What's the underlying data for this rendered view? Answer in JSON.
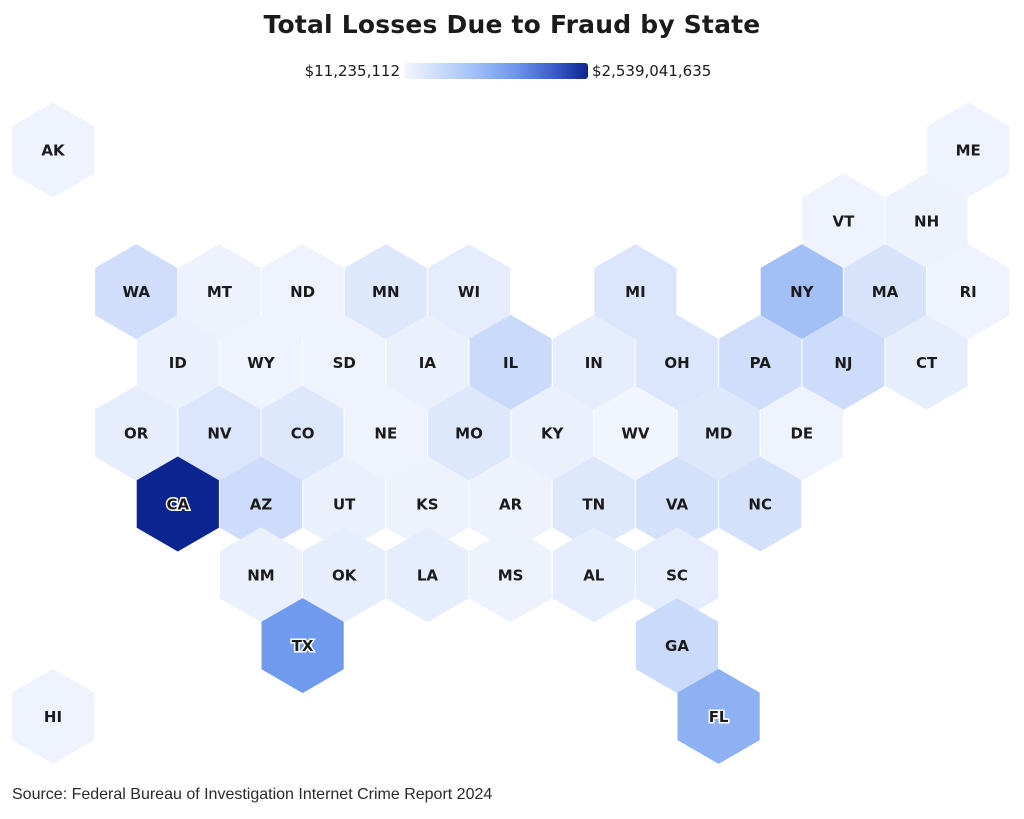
{
  "chart_data": {
    "type": "heatmap",
    "subtype": "hexagon tile map",
    "title": "Total Losses Due to Fraud by State",
    "legend": {
      "min_label": "$11,235,112",
      "max_label": "$2,539,041,635",
      "min_value": 11235112,
      "max_value": 2539041635,
      "min_color": "#f3f6fe",
      "max_color": "#0c2490",
      "position": "top-center"
    },
    "note": "intensity is relative shading (0=lightest,1=darkest) estimated visually; exact per-state values are not labeled",
    "states": [
      {
        "code": "AK",
        "row": 0,
        "col": 0,
        "intensity": 0.02
      },
      {
        "code": "ME",
        "row": 0,
        "col": 11,
        "intensity": 0.02
      },
      {
        "code": "VT",
        "row": 1,
        "col": 9.5,
        "intensity": 0.02
      },
      {
        "code": "NH",
        "row": 1,
        "col": 10.5,
        "intensity": 0.03
      },
      {
        "code": "WA",
        "row": 2,
        "col": 1,
        "intensity": 0.18
      },
      {
        "code": "MT",
        "row": 2,
        "col": 2,
        "intensity": 0.03
      },
      {
        "code": "ND",
        "row": 2,
        "col": 3,
        "intensity": 0.02
      },
      {
        "code": "MN",
        "row": 2,
        "col": 4,
        "intensity": 0.1
      },
      {
        "code": "WI",
        "row": 2,
        "col": 5,
        "intensity": 0.07
      },
      {
        "code": "MI",
        "row": 2,
        "col": 7,
        "intensity": 0.12
      },
      {
        "code": "NY",
        "row": 2,
        "col": 9,
        "intensity": 0.4
      },
      {
        "code": "MA",
        "row": 2,
        "col": 10,
        "intensity": 0.14
      },
      {
        "code": "RI",
        "row": 2,
        "col": 11,
        "intensity": 0.02
      },
      {
        "code": "ID",
        "row": 3,
        "col": 1.5,
        "intensity": 0.04
      },
      {
        "code": "WY",
        "row": 3,
        "col": 2.5,
        "intensity": 0.02
      },
      {
        "code": "SD",
        "row": 3,
        "col": 3.5,
        "intensity": 0.02
      },
      {
        "code": "IA",
        "row": 3,
        "col": 4.5,
        "intensity": 0.04
      },
      {
        "code": "IL",
        "row": 3,
        "col": 5.5,
        "intensity": 0.22
      },
      {
        "code": "IN",
        "row": 3,
        "col": 6.5,
        "intensity": 0.06
      },
      {
        "code": "OH",
        "row": 3,
        "col": 7.5,
        "intensity": 0.12
      },
      {
        "code": "PA",
        "row": 3,
        "col": 8.5,
        "intensity": 0.18
      },
      {
        "code": "NJ",
        "row": 3,
        "col": 9.5,
        "intensity": 0.2
      },
      {
        "code": "CT",
        "row": 3,
        "col": 10.5,
        "intensity": 0.06
      },
      {
        "code": "OR",
        "row": 4,
        "col": 1,
        "intensity": 0.06
      },
      {
        "code": "NV",
        "row": 4,
        "col": 2,
        "intensity": 0.12
      },
      {
        "code": "CO",
        "row": 4,
        "col": 3,
        "intensity": 0.1
      },
      {
        "code": "NE",
        "row": 4,
        "col": 4,
        "intensity": 0.02
      },
      {
        "code": "MO",
        "row": 4,
        "col": 5,
        "intensity": 0.1
      },
      {
        "code": "KY",
        "row": 4,
        "col": 6,
        "intensity": 0.04
      },
      {
        "code": "WV",
        "row": 4,
        "col": 7,
        "intensity": 0.01
      },
      {
        "code": "MD",
        "row": 4,
        "col": 8,
        "intensity": 0.1
      },
      {
        "code": "DE",
        "row": 4,
        "col": 9,
        "intensity": 0.02
      },
      {
        "code": "CA",
        "row": 5,
        "col": 1.5,
        "intensity": 1.0
      },
      {
        "code": "AZ",
        "row": 5,
        "col": 2.5,
        "intensity": 0.2
      },
      {
        "code": "UT",
        "row": 5,
        "col": 3.5,
        "intensity": 0.04
      },
      {
        "code": "KS",
        "row": 5,
        "col": 4.5,
        "intensity": 0.03
      },
      {
        "code": "AR",
        "row": 5,
        "col": 5.5,
        "intensity": 0.03
      },
      {
        "code": "TN",
        "row": 5,
        "col": 6.5,
        "intensity": 0.1
      },
      {
        "code": "VA",
        "row": 5,
        "col": 7.5,
        "intensity": 0.16
      },
      {
        "code": "NC",
        "row": 5,
        "col": 8.5,
        "intensity": 0.16
      },
      {
        "code": "NM",
        "row": 6,
        "col": 2.5,
        "intensity": 0.04
      },
      {
        "code": "OK",
        "row": 6,
        "col": 3.5,
        "intensity": 0.06
      },
      {
        "code": "LA",
        "row": 6,
        "col": 4.5,
        "intensity": 0.06
      },
      {
        "code": "MS",
        "row": 6,
        "col": 5.5,
        "intensity": 0.03
      },
      {
        "code": "AL",
        "row": 6,
        "col": 6.5,
        "intensity": 0.06
      },
      {
        "code": "SC",
        "row": 6,
        "col": 7.5,
        "intensity": 0.07
      },
      {
        "code": "TX",
        "row": 7,
        "col": 3,
        "intensity": 0.6
      },
      {
        "code": "GA",
        "row": 7,
        "col": 7.5,
        "intensity": 0.22
      },
      {
        "code": "HI",
        "row": 8,
        "col": 0,
        "intensity": 0.02
      },
      {
        "code": "FL",
        "row": 8,
        "col": 8,
        "intensity": 0.48
      }
    ]
  },
  "source": "Source: Federal Bureau of Investigation Internet Crime Report 2024"
}
